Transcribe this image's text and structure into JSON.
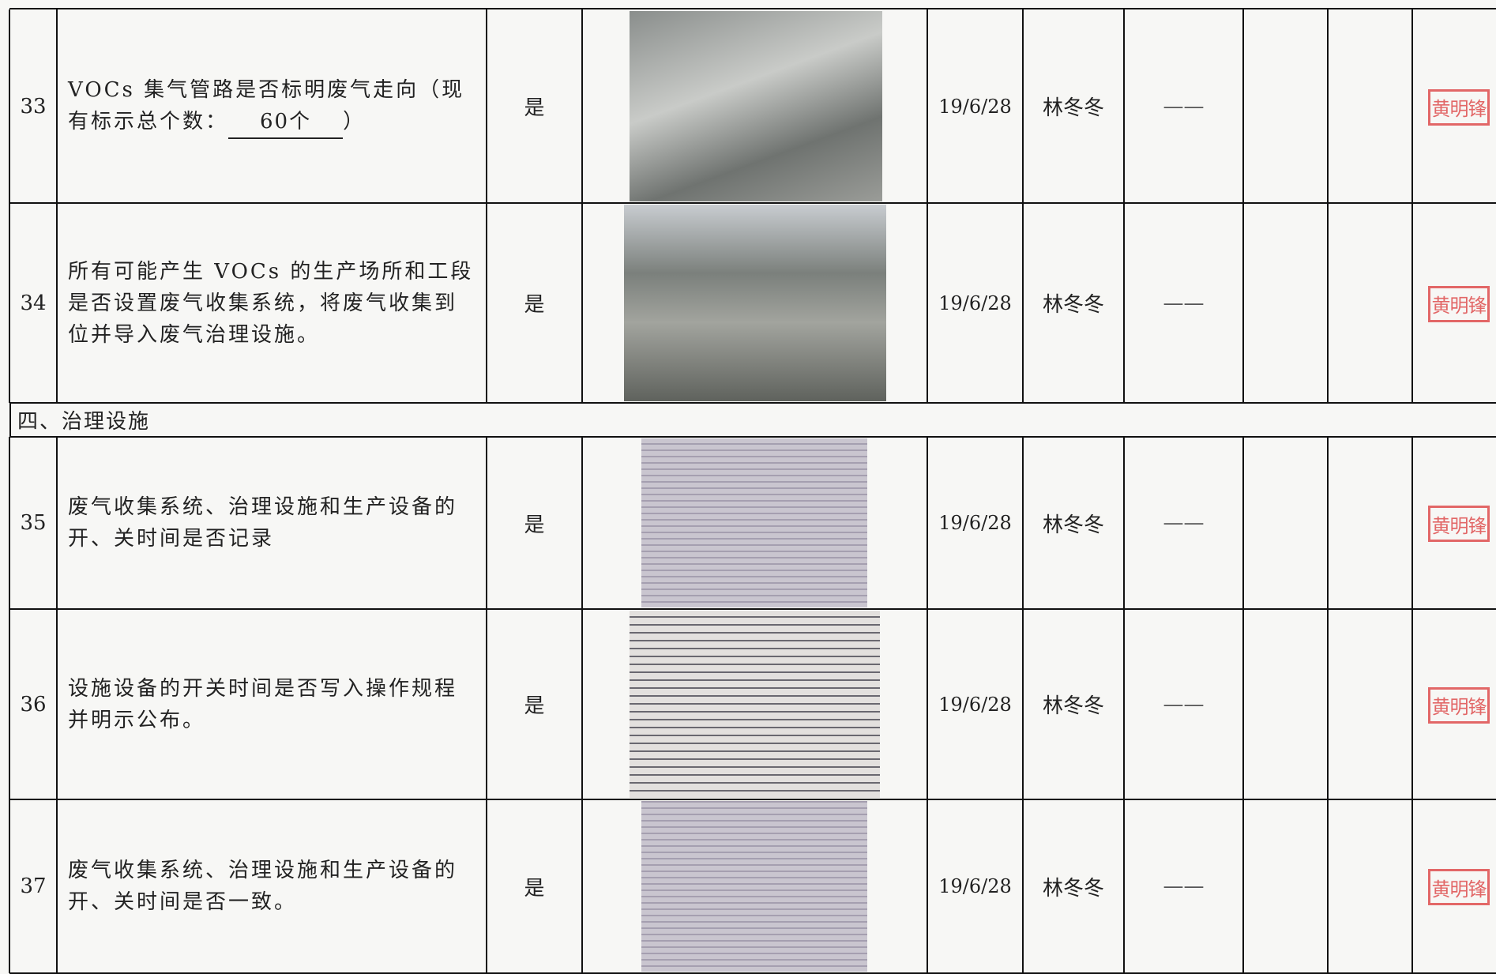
{
  "table": {
    "sections": [
      {
        "rows": [
          {
            "no": "33",
            "item": {
              "prefix": "VOCs 集气管路是否标明废气走向（现有标示总个数：",
              "fill": "60个",
              "suffix": "）"
            },
            "answer": "是",
            "date": "19/6/28",
            "person": "林冬冬",
            "result": "——",
            "seal": "黄明锋"
          },
          {
            "no": "34",
            "item": "所有可能产生 VOCs 的生产场所和工段是否设置废气收集系统，将废气收集到位并导入废气治理设施。",
            "answer": "是",
            "date": "19/6/28",
            "person": "林冬冬",
            "result": "——",
            "seal": "黄明锋"
          }
        ]
      },
      {
        "title": "四、治理设施",
        "rows": [
          {
            "no": "35",
            "item": "废气收集系统、治理设施和生产设备的开、关时间是否记录",
            "answer": "是",
            "date": "19/6/28",
            "person": "林冬冬",
            "result": "——",
            "seal": "黄明锋"
          },
          {
            "no": "36",
            "item": "设施设备的开关时间是否写入操作规程并明示公布。",
            "answer": "是",
            "date": "19/6/28",
            "person": "林冬冬",
            "result": "——",
            "seal": "黄明锋"
          },
          {
            "no": "37",
            "item": "废气收集系统、治理设施和生产设备的开、关时间是否一致。",
            "answer": "是",
            "date": "19/6/28",
            "person": "林冬冬",
            "result": "——",
            "seal": "黄明锋"
          }
        ]
      }
    ]
  }
}
